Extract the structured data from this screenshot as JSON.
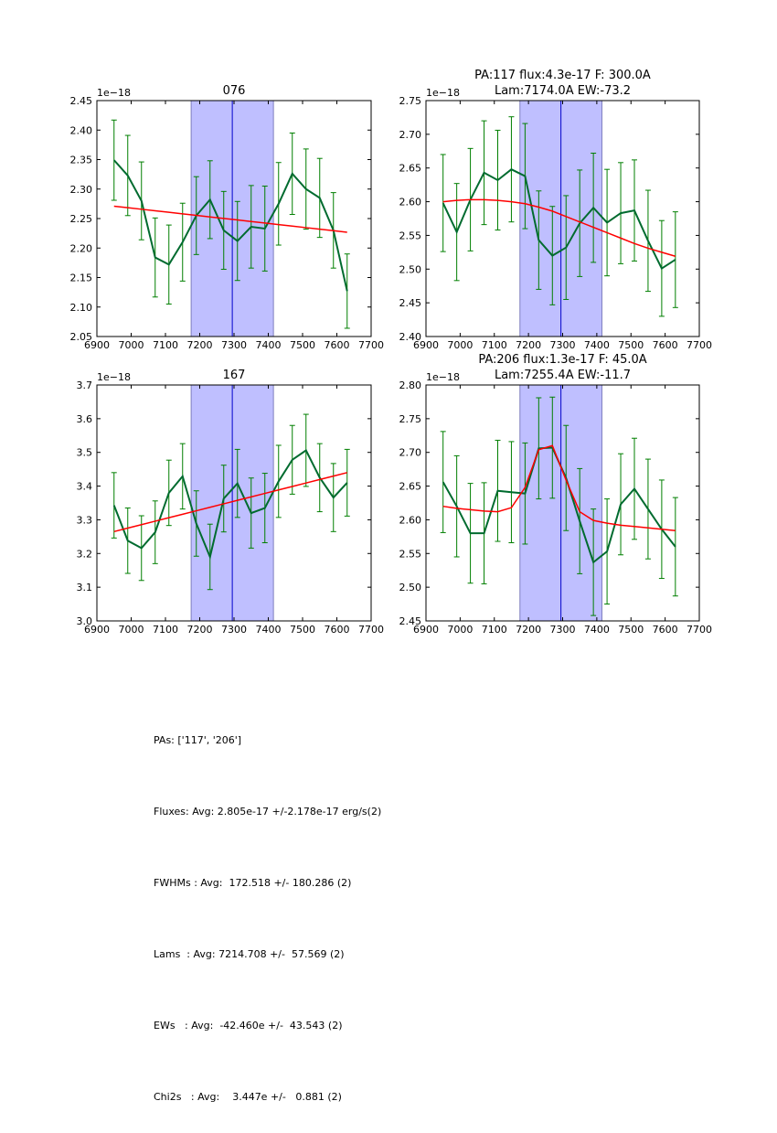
{
  "chart_data": [
    {
      "type": "line",
      "title": "076",
      "offset_label": "1e−18",
      "xlim": [
        6900,
        7700
      ],
      "ylim": [
        2.05,
        2.45
      ],
      "xticks": [
        "6900",
        "7000",
        "7100",
        "7200",
        "7300",
        "7400",
        "7500",
        "7600",
        "7700"
      ],
      "yticks": [
        "2.05",
        "2.10",
        "2.15",
        "2.20",
        "2.25",
        "2.30",
        "2.35",
        "2.40",
        "2.45"
      ],
      "span": [
        7175,
        7415
      ],
      "vline": 7295,
      "x": [
        6950,
        6990,
        7030,
        7070,
        7110,
        7150,
        7190,
        7230,
        7270,
        7310,
        7350,
        7390,
        7430,
        7470,
        7510,
        7550,
        7590,
        7630
      ],
      "series": [
        {
          "name": "data",
          "color": "#006b2f",
          "values": [
            2.349,
            2.323,
            2.28,
            2.184,
            2.172,
            2.21,
            2.255,
            2.282,
            2.23,
            2.212,
            2.236,
            2.233,
            2.275,
            2.326,
            2.3,
            2.285,
            2.23,
            2.127
          ],
          "errors": [
            0.068,
            0.068,
            0.066,
            0.067,
            0.067,
            0.066,
            0.066,
            0.066,
            0.066,
            0.067,
            0.07,
            0.072,
            0.07,
            0.069,
            0.068,
            0.067,
            0.064,
            0.063
          ]
        },
        {
          "name": "fit",
          "color": "#ff0000",
          "values": [
            2.271,
            2.2684,
            2.2658,
            2.2632,
            2.2606,
            2.258,
            2.2554,
            2.2528,
            2.2502,
            2.2476,
            2.245,
            2.2424,
            2.2398,
            2.2372,
            2.2346,
            2.232,
            2.2294,
            2.2268
          ]
        }
      ]
    },
    {
      "type": "line",
      "title": "PA:117 flux:4.3e-17 F: 300.0A\nLam:7174.0A EW:-73.2",
      "title_lines": [
        "PA:117 flux:4.3e-17 F: 300.0A",
        "Lam:7174.0A EW:-73.2"
      ],
      "offset_label": "1e−18",
      "xlim": [
        6900,
        7700
      ],
      "ylim": [
        2.4,
        2.75
      ],
      "xticks": [
        "6900",
        "7000",
        "7100",
        "7200",
        "7300",
        "7400",
        "7500",
        "7600",
        "7700"
      ],
      "yticks": [
        "2.40",
        "2.45",
        "2.50",
        "2.55",
        "2.60",
        "2.65",
        "2.70",
        "2.75"
      ],
      "span": [
        7175,
        7415
      ],
      "vline": 7295,
      "x": [
        6950,
        6990,
        7030,
        7070,
        7110,
        7150,
        7190,
        7230,
        7270,
        7310,
        7350,
        7390,
        7430,
        7470,
        7510,
        7550,
        7590,
        7630
      ],
      "series": [
        {
          "name": "data",
          "color": "#006b2f",
          "values": [
            2.598,
            2.555,
            2.603,
            2.643,
            2.632,
            2.648,
            2.638,
            2.543,
            2.52,
            2.532,
            2.568,
            2.591,
            2.569,
            2.583,
            2.587,
            2.542,
            2.501,
            2.514
          ],
          "errors": [
            0.072,
            0.072,
            0.076,
            0.077,
            0.074,
            0.078,
            0.078,
            0.073,
            0.073,
            0.077,
            0.079,
            0.081,
            0.079,
            0.075,
            0.075,
            0.075,
            0.071,
            0.071
          ]
        },
        {
          "name": "fit",
          "color": "#ff0000",
          "values": [
            2.6,
            2.602,
            2.603,
            2.603,
            2.602,
            2.6,
            2.597,
            2.592,
            2.586,
            2.578,
            2.57,
            2.562,
            2.554,
            2.546,
            2.538,
            2.531,
            2.525,
            2.519
          ]
        }
      ]
    },
    {
      "type": "line",
      "title": "167",
      "offset_label": "1e−18",
      "xlim": [
        6900,
        7700
      ],
      "ylim": [
        3.0,
        3.7
      ],
      "xticks": [
        "6900",
        "7000",
        "7100",
        "7200",
        "7300",
        "7400",
        "7500",
        "7600",
        "7700"
      ],
      "yticks": [
        "3.0",
        "3.1",
        "3.2",
        "3.3",
        "3.4",
        "3.5",
        "3.6",
        "3.7"
      ],
      "span": [
        7175,
        7415
      ],
      "vline": 7295,
      "x": [
        6950,
        6990,
        7030,
        7070,
        7110,
        7150,
        7190,
        7230,
        7270,
        7310,
        7350,
        7390,
        7430,
        7470,
        7510,
        7550,
        7590,
        7630
      ],
      "series": [
        {
          "name": "data",
          "color": "#006b2f",
          "values": [
            3.343,
            3.238,
            3.216,
            3.263,
            3.38,
            3.429,
            3.289,
            3.19,
            3.363,
            3.408,
            3.32,
            3.335,
            3.414,
            3.478,
            3.506,
            3.425,
            3.366,
            3.41
          ],
          "errors": [
            0.097,
            0.097,
            0.096,
            0.093,
            0.097,
            0.097,
            0.097,
            0.097,
            0.099,
            0.101,
            0.104,
            0.103,
            0.107,
            0.102,
            0.107,
            0.101,
            0.101,
            0.099
          ]
        },
        {
          "name": "fit",
          "color": "#ff0000",
          "values": [
            3.265,
            3.2753,
            3.2856,
            3.2959,
            3.3062,
            3.3165,
            3.3268,
            3.3371,
            3.3474,
            3.3577,
            3.368,
            3.3783,
            3.3886,
            3.3989,
            3.4092,
            3.4195,
            3.4298,
            3.4401
          ]
        }
      ]
    },
    {
      "type": "line",
      "title": "PA:206 flux:1.3e-17 F: 45.0A\nLam:7255.4A EW:-11.7",
      "title_lines": [
        "PA:206 flux:1.3e-17 F: 45.0A",
        "Lam:7255.4A EW:-11.7"
      ],
      "offset_label": "1e−18",
      "xlim": [
        6900,
        7700
      ],
      "ylim": [
        2.45,
        2.8
      ],
      "xticks": [
        "6900",
        "7000",
        "7100",
        "7200",
        "7300",
        "7400",
        "7500",
        "7600",
        "7700"
      ],
      "yticks": [
        "2.45",
        "2.50",
        "2.55",
        "2.60",
        "2.65",
        "2.70",
        "2.75",
        "2.80"
      ],
      "span": [
        7175,
        7415
      ],
      "vline": 7295,
      "x": [
        6950,
        6990,
        7030,
        7070,
        7110,
        7150,
        7190,
        7230,
        7270,
        7310,
        7350,
        7390,
        7430,
        7470,
        7510,
        7550,
        7590,
        7630
      ],
      "series": [
        {
          "name": "data",
          "color": "#006b2f",
          "values": [
            2.656,
            2.62,
            2.58,
            2.58,
            2.643,
            2.641,
            2.639,
            2.706,
            2.707,
            2.662,
            2.598,
            2.537,
            2.553,
            2.623,
            2.646,
            2.616,
            2.586,
            2.56
          ],
          "errors": [
            0.075,
            0.075,
            0.074,
            0.075,
            0.075,
            0.075,
            0.075,
            0.075,
            0.075,
            0.078,
            0.078,
            0.079,
            0.078,
            0.075,
            0.075,
            0.074,
            0.073,
            0.073
          ]
        },
        {
          "name": "fit",
          "color": "#ff0000",
          "values": [
            2.62,
            2.617,
            2.615,
            2.613,
            2.612,
            2.618,
            2.648,
            2.704,
            2.71,
            2.659,
            2.612,
            2.599,
            2.595,
            2.592,
            2.59,
            2.588,
            2.586,
            2.584
          ]
        }
      ]
    }
  ],
  "summary": {
    "lines": [
      "PAs: ['117', '206']",
      "Fluxes: Avg: 2.805e-17 +/-2.178e-17 erg/s(2)",
      "FWHMs : Avg:  172.518 +/- 180.286 (2)",
      "Lams  : Avg: 7214.708 +/-  57.569 (2)",
      "EWs   : Avg:  -42.460e +/-  43.543 (2)",
      "Chi2s   : Avg:    3.447e +/-   0.881 (2)"
    ]
  },
  "colors": {
    "data_line": "#006b2f",
    "errorbar": "#007f00",
    "fit_line": "#ff0000",
    "span_fill": "#bfbfff",
    "span_edge": "#7f7fbf",
    "vline": "#0000cc"
  }
}
